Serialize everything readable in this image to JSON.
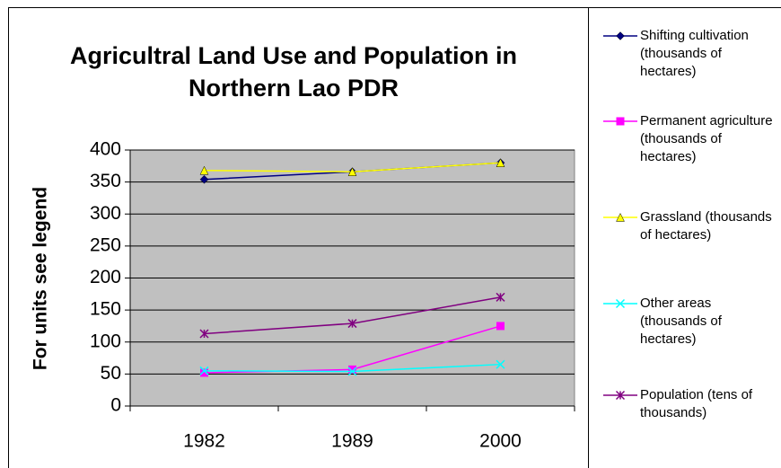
{
  "chart_data": {
    "type": "line",
    "title": "Agricultral Land Use and Population in Northern Lao PDR",
    "y_label": "For units see legend",
    "categories": [
      "1982",
      "1989",
      "2000"
    ],
    "series": [
      {
        "name": "Shifting cultivation (thousands of hectares)",
        "color": "#000080",
        "marker": "diamond",
        "values": [
          354,
          366,
          380
        ]
      },
      {
        "name": "Permanent agriculture (thousands of hectares)",
        "color": "#ff00ff",
        "marker": "square",
        "values": [
          52,
          57,
          125
        ]
      },
      {
        "name": "Grassland (thousands of hectares)",
        "color": "#ffff00",
        "marker": "triangle",
        "values": [
          368,
          366,
          380
        ]
      },
      {
        "name": "Other areas (thousands of hectares)",
        "color": "#00ffff",
        "marker": "x",
        "values": [
          55,
          54,
          65
        ]
      },
      {
        "name": "Population (tens of thousands)",
        "color": "#800080",
        "marker": "star",
        "values": [
          113,
          129,
          170
        ]
      }
    ],
    "ylim": [
      0,
      400
    ],
    "yticks": [
      0,
      50,
      100,
      150,
      200,
      250,
      300,
      350,
      400
    ],
    "grid": true,
    "plot_background": "#c0c0c0",
    "legend": "right"
  }
}
